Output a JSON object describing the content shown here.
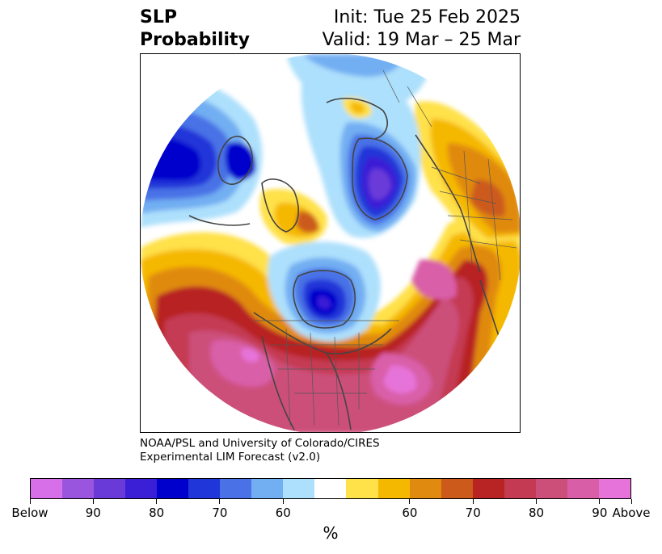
{
  "header": {
    "title_line1": "SLP",
    "title_line2": "Probability",
    "init": "Init: Tue 25 Feb 2025",
    "valid": "Valid: 19 Mar – 25 Mar"
  },
  "credit": {
    "line1": "NOAA/PSL and University of Colorado/CIRES",
    "line2": "Experimental LIM Forecast (v2.0)"
  },
  "colorbar": {
    "unit": "%",
    "colors": [
      "#d66fe8",
      "#9a55df",
      "#6a3ad8",
      "#3a1fd6",
      "#0000cc",
      "#2136d8",
      "#4a72e6",
      "#72aef2",
      "#ade0fc",
      "#ffffff",
      "#ffe14a",
      "#f5b800",
      "#e08a10",
      "#cc5a1a",
      "#b82424",
      "#c43a52",
      "#cc4f7a",
      "#d95ea8",
      "#e673d9"
    ],
    "tick_labels": [
      "Below",
      "90",
      "80",
      "70",
      "60",
      "60",
      "70",
      "80",
      "90",
      "Above"
    ],
    "tick_bins": [
      0,
      2,
      4,
      6,
      8,
      12,
      14,
      16,
      18,
      20
    ]
  },
  "map": {
    "projection": "north-polar-stereographic",
    "field": "SLP probability",
    "features": [
      "coastlines",
      "country-borders",
      "state-borders"
    ]
  }
}
